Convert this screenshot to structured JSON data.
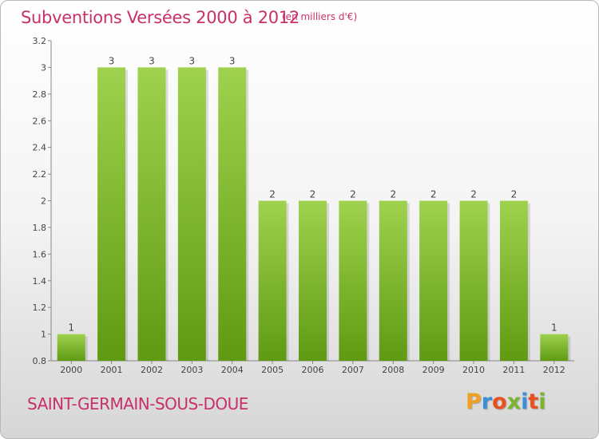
{
  "header": {
    "title": "Subventions Versées 2000 à 2012",
    "unit": "(en milliers d'€)"
  },
  "footer": {
    "commune": "SAINT-GERMAIN-SOUS-DOUE",
    "logo": {
      "letters": [
        "P",
        "r",
        "o",
        "x",
        "i",
        "t",
        "i"
      ],
      "colors": [
        "#f0a020",
        "#3a8fd6",
        "#e8501e",
        "#7ab62c",
        "#3a8fd6",
        "#e8501e",
        "#7ab62c"
      ]
    }
  },
  "colors": {
    "bar_top": "#9fd24e",
    "bar_bottom": "#5f9a12",
    "text_accent": "#c8306a"
  },
  "chart_data": {
    "type": "bar",
    "categories": [
      "2000",
      "2001",
      "2002",
      "2003",
      "2004",
      "2005",
      "2006",
      "2007",
      "2008",
      "2009",
      "2010",
      "2011",
      "2012"
    ],
    "values": [
      1,
      3,
      3,
      3,
      3,
      2,
      2,
      2,
      2,
      2,
      2,
      2,
      1
    ],
    "data_labels": [
      "1",
      "3",
      "3",
      "3",
      "3",
      "2",
      "2",
      "2",
      "2",
      "2",
      "2",
      "2",
      "1"
    ],
    "title": "Subventions Versées 2000 à 2012",
    "ylim": [
      0.8,
      3.2
    ],
    "yticks": [
      "0.8",
      "1",
      "1.2",
      "1.4",
      "1.6",
      "1.8",
      "2",
      "2.2",
      "2.4",
      "2.6",
      "2.8",
      "3",
      "3.2"
    ],
    "grid": false
  }
}
